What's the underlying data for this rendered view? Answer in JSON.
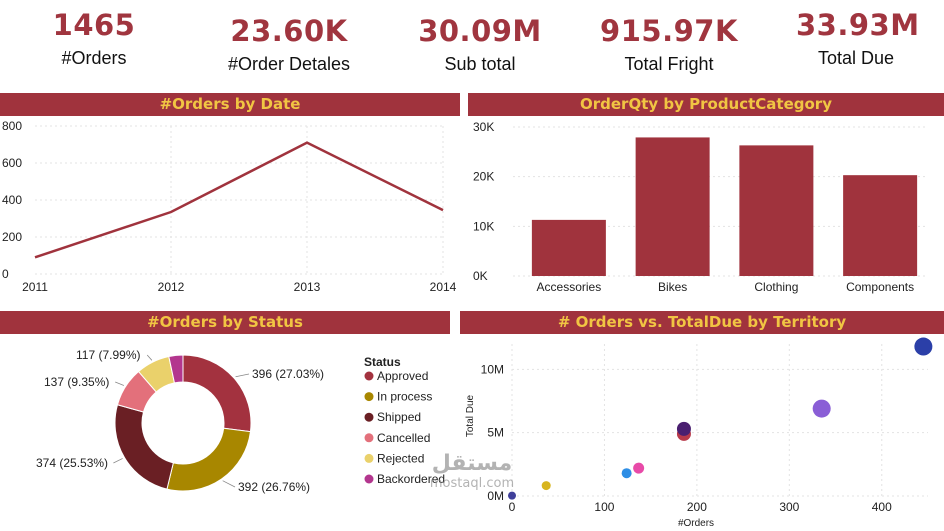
{
  "kpis": [
    {
      "value": "1465",
      "label": "#Orders"
    },
    {
      "value": "23.60K",
      "label": "#Order Detales"
    },
    {
      "value": "30.09M",
      "label": "Sub total"
    },
    {
      "value": "915.97K",
      "label": "Total Fright"
    },
    {
      "value": "33.93M",
      "label": "Total Due"
    }
  ],
  "colors": {
    "accent": "#a0333d",
    "title_text": "#f1c543"
  },
  "watermark": {
    "arabic": "مستقل",
    "latin": "mostaql.com"
  },
  "chart_data": [
    {
      "type": "line",
      "title": "#Orders by Date",
      "x": [
        "2011",
        "2012",
        "2013",
        "2014"
      ],
      "series": [
        {
          "values": [
            90,
            335,
            710,
            345
          ]
        }
      ],
      "ylim": [
        0,
        800
      ],
      "yticks": [
        "0",
        "200",
        "400",
        "600",
        "800"
      ],
      "grid": true,
      "color": "#a0333d"
    },
    {
      "type": "bar",
      "title": "OrderQty by ProductCategory",
      "categories": [
        "Accessories",
        "Bikes",
        "Clothing",
        "Components"
      ],
      "values": [
        11300,
        27900,
        26300,
        20300
      ],
      "ylim": [
        0,
        30000
      ],
      "yticks": [
        "0K",
        "10K",
        "20K",
        "30K"
      ],
      "grid": true,
      "color": "#a0333d"
    },
    {
      "type": "pie",
      "title": "#Orders by Status",
      "legend_title": "Status",
      "legend_position": "right",
      "slices": [
        {
          "name": "Approved",
          "value": 396,
          "label": "396 (27.03%)",
          "color": "#a3323f"
        },
        {
          "name": "In process",
          "value": 392,
          "label": "392 (26.76%)",
          "color": "#a88700"
        },
        {
          "name": "Shipped",
          "value": 374,
          "label": "374 (25.53%)",
          "color": "#6a1f24"
        },
        {
          "name": "Cancelled",
          "value": 137,
          "label": "137 (9.35%)",
          "color": "#e3707b"
        },
        {
          "name": "Rejected",
          "value": 117,
          "label": "117 (7.99%)",
          "color": "#ead16b"
        },
        {
          "name": "Backordered",
          "value": 49,
          "label": "",
          "color": "#b3368e"
        }
      ]
    },
    {
      "type": "scatter",
      "title": "# Orders vs. TotalDue by Territory",
      "xlabel": "#Orders",
      "ylabel": "Total Due",
      "xlim": [
        0,
        450
      ],
      "ylim": [
        0,
        12000000
      ],
      "xticks": [
        0,
        100,
        200,
        300,
        400
      ],
      "yticks": [
        {
          "v": 0,
          "t": "0M"
        },
        {
          "v": 5000000,
          "t": "5M"
        },
        {
          "v": 10000000,
          "t": "10M"
        }
      ],
      "grid": true,
      "points": [
        {
          "x": 0,
          "y": 30000,
          "r": 4,
          "color": "#3f3f9a"
        },
        {
          "x": 37,
          "y": 820000,
          "r": 4.5,
          "color": "#d8b51f"
        },
        {
          "x": 124,
          "y": 1800000,
          "r": 5,
          "color": "#2e8ee5"
        },
        {
          "x": 137,
          "y": 2200000,
          "r": 5.5,
          "color": "#e84aa8"
        },
        {
          "x": 186,
          "y": 4900000,
          "r": 7,
          "color": "#b83a4a"
        },
        {
          "x": 186,
          "y": 5300000,
          "r": 7,
          "color": "#4a1f70"
        },
        {
          "x": 335,
          "y": 6900000,
          "r": 9,
          "color": "#8a5ed6"
        },
        {
          "x": 445,
          "y": 11800000,
          "r": 9,
          "color": "#2b3fa8"
        }
      ]
    }
  ]
}
